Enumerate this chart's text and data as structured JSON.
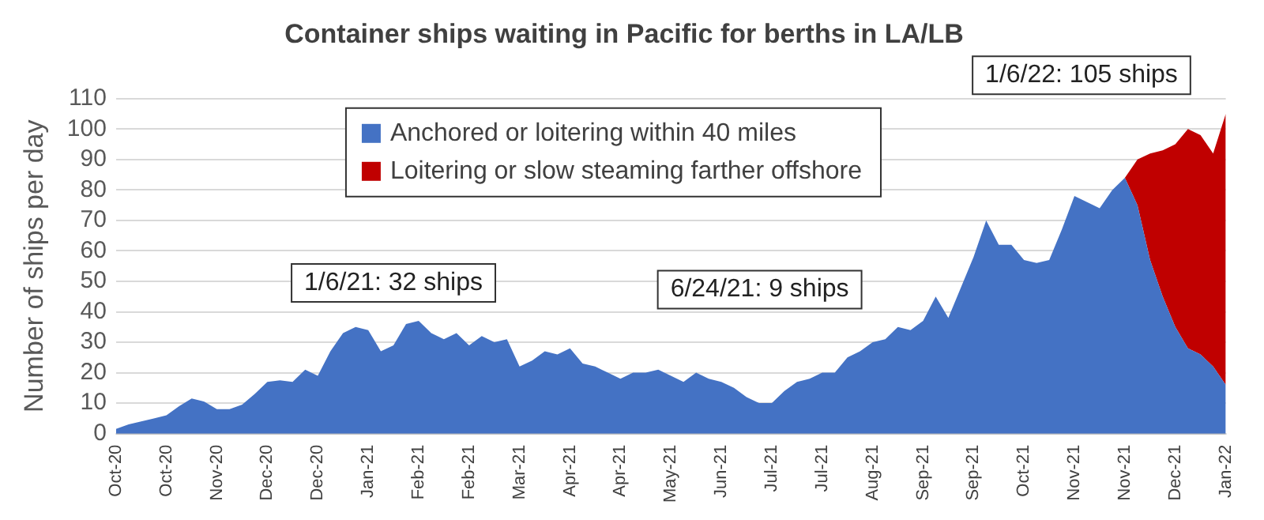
{
  "chart_data": {
    "type": "area",
    "title": "Container ships waiting in Pacific for berths in LA/LB",
    "ylabel": "Number of ships per day",
    "categories": [
      "Oct-20",
      null,
      null,
      null,
      "Oct-20",
      null,
      null,
      null,
      "Nov-20",
      null,
      null,
      null,
      "Dec-20",
      null,
      null,
      null,
      "Dec-20",
      null,
      null,
      null,
      "Jan-21",
      null,
      null,
      null,
      "Feb-21",
      null,
      null,
      null,
      "Feb-21",
      null,
      null,
      null,
      "Mar-21",
      null,
      null,
      null,
      "Apr-21",
      null,
      null,
      null,
      "Apr-21",
      null,
      null,
      null,
      "May-21",
      null,
      null,
      null,
      "Jun-21",
      null,
      null,
      null,
      "Jul-21",
      null,
      null,
      null,
      "Jul-21",
      null,
      null,
      null,
      "Aug-21",
      null,
      null,
      null,
      "Sep-21",
      null,
      null,
      null,
      "Sep-21",
      null,
      null,
      null,
      "Oct-21",
      null,
      null,
      null,
      "Nov-21",
      null,
      null,
      null,
      "Nov-21",
      null,
      null,
      null,
      "Dec-21",
      null,
      null,
      null,
      "Jan-22"
    ],
    "series": [
      {
        "name": "Anchored or loitering within 40 miles",
        "color": "#4472c4",
        "values": [
          1.5,
          3,
          4,
          5,
          6,
          9,
          11.5,
          10.5,
          8,
          8,
          9.5,
          13,
          17,
          17.5,
          17,
          21,
          19,
          27,
          33,
          35,
          34,
          27,
          29,
          36,
          37,
          33,
          31,
          33,
          29,
          32,
          30,
          31,
          22,
          24,
          27,
          26,
          28,
          23,
          22,
          20,
          18,
          20,
          20,
          21,
          19,
          17,
          20,
          18,
          17,
          15,
          12,
          10,
          10,
          14,
          17,
          18,
          20,
          20,
          25,
          27,
          30,
          31,
          35,
          34,
          37,
          45,
          38,
          48,
          58,
          70,
          62,
          62,
          57,
          56,
          57,
          67,
          78,
          76,
          74,
          80,
          84,
          75,
          57,
          45,
          35,
          28,
          26,
          22,
          16
        ]
      },
      {
        "name": "Loitering or slow steaming farther offshore",
        "color": "#c00000",
        "values": [
          null,
          null,
          null,
          null,
          null,
          null,
          null,
          null,
          null,
          null,
          null,
          null,
          null,
          null,
          null,
          null,
          null,
          null,
          null,
          null,
          null,
          null,
          null,
          null,
          null,
          null,
          null,
          null,
          null,
          null,
          null,
          null,
          null,
          null,
          null,
          null,
          null,
          null,
          null,
          null,
          null,
          null,
          null,
          null,
          null,
          null,
          null,
          null,
          null,
          null,
          null,
          null,
          null,
          null,
          null,
          null,
          null,
          null,
          null,
          null,
          null,
          null,
          null,
          null,
          null,
          null,
          null,
          null,
          null,
          null,
          null,
          null,
          null,
          null,
          null,
          null,
          null,
          null,
          null,
          null,
          0,
          15,
          35,
          48,
          60,
          72,
          72,
          70,
          89
        ]
      }
    ],
    "stacked": true,
    "ylim": [
      0,
      110
    ],
    "yticks": [
      0,
      10,
      20,
      30,
      40,
      50,
      60,
      70,
      80,
      90,
      100,
      110
    ],
    "grid": "y",
    "legend": "top",
    "annotations": [
      "1/6/21: 32 ships",
      "6/24/21: 9 ships",
      "1/6/22: 105 ships"
    ]
  }
}
